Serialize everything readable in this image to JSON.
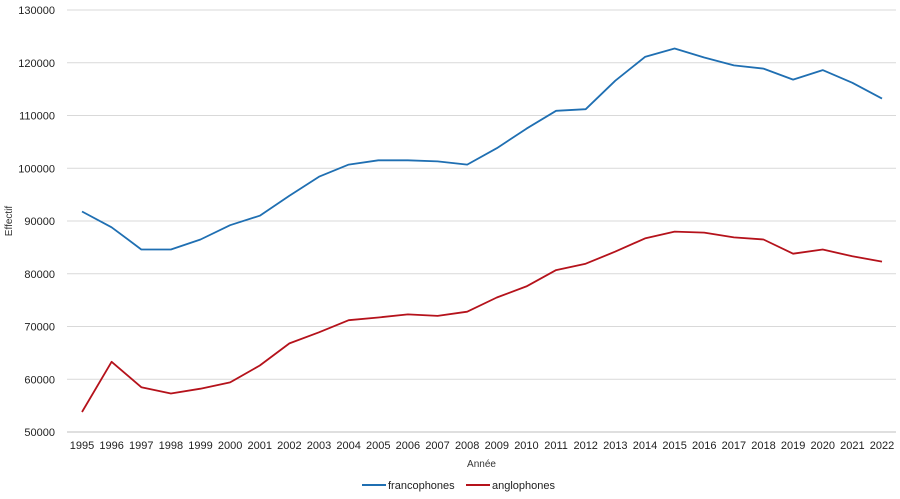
{
  "chart_data": {
    "type": "line",
    "title": "",
    "xlabel": "Année",
    "ylabel": "Effectif",
    "ylim": [
      50000,
      130000
    ],
    "ytick_step": 10000,
    "grid": "horizontal",
    "legend_position": "bottom",
    "x": [
      1995,
      1996,
      1997,
      1998,
      1999,
      2000,
      2001,
      2002,
      2003,
      2004,
      2005,
      2006,
      2007,
      2008,
      2009,
      2010,
      2011,
      2012,
      2013,
      2014,
      2015,
      2016,
      2017,
      2018,
      2019,
      2020,
      2021,
      2022
    ],
    "series": [
      {
        "name": "francophones",
        "color": "#1f6fb2",
        "values": [
          91800,
          88800,
          84600,
          84600,
          86500,
          89200,
          91000,
          94800,
          98400,
          100700,
          101500,
          101500,
          101300,
          100700,
          103800,
          107500,
          110900,
          111200,
          116600,
          121100,
          122700,
          121000,
          119500,
          118900,
          116800,
          118600,
          116200,
          113200
        ]
      },
      {
        "name": "anglophones",
        "color": "#b5121b",
        "values": [
          53800,
          63300,
          58500,
          57300,
          58200,
          59400,
          62600,
          66800,
          68900,
          71200,
          71700,
          72300,
          72000,
          72800,
          75500,
          77600,
          80700,
          81900,
          84200,
          86700,
          88000,
          87800,
          86900,
          86500,
          83800,
          84600,
          83300,
          82300
        ]
      }
    ]
  }
}
